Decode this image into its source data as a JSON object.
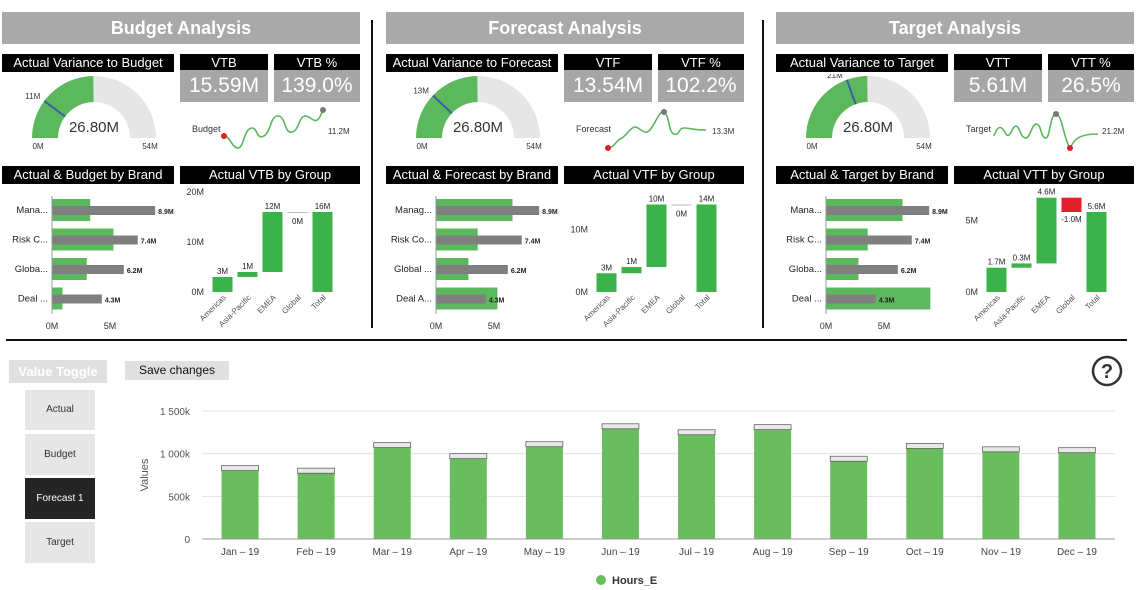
{
  "colors": {
    "green": "#5cb85c",
    "bright_green": "#3bb34a",
    "bar_gray": "#7f7f7f",
    "banner_gray": "#a9a9a9",
    "red": "#e0202a",
    "needle_blue": "#3a5ea8"
  },
  "sections": [
    {
      "id": "budget",
      "banner": "Budget Analysis",
      "gauge_title": "Actual Variance to Budget",
      "gauge": {
        "value_label": "26.80M",
        "value": 26.8,
        "min": 0,
        "max": 54,
        "min_label": "0M",
        "max_label": "54M",
        "target_label": "11M",
        "target": 11
      },
      "kpi1": {
        "label": "VTB",
        "value": "15.59M"
      },
      "kpi2": {
        "label": "VTB %",
        "value": "139.0%"
      },
      "spark": {
        "label": "Budget",
        "end_label": "11.2M"
      },
      "bar_title": "Actual & Budget by Brand",
      "bar_chart": {
        "categories": [
          "Mana...",
          "Risk C...",
          "Globa...",
          "Deal ..."
        ],
        "actual": [
          3.3,
          5.3,
          3.0,
          0.9
        ],
        "other": [
          8.9,
          7.4,
          6.2,
          4.3
        ],
        "other_labels": [
          "8.9M",
          "7.4M",
          "6.2M",
          "4.3M"
        ],
        "xmax": 10,
        "xticks": [
          "0M",
          "5M"
        ]
      },
      "wf_title": "Actual VTB by Group",
      "waterfall": {
        "categories": [
          "Americas",
          "Asia-Pacific",
          "EMEA",
          "Global",
          "Total"
        ],
        "values": [
          3,
          1,
          12,
          0,
          16
        ],
        "labels": [
          "3M",
          "1M",
          "12M",
          "0M",
          "16M"
        ],
        "ymax": 20,
        "yticks": [
          "0M",
          "10M",
          "20M"
        ]
      }
    },
    {
      "id": "forecast",
      "banner": "Forecast Analysis",
      "gauge_title": "Actual Variance to Forecast",
      "gauge": {
        "value_label": "26.80M",
        "value": 26.8,
        "min": 0,
        "max": 54,
        "min_label": "0M",
        "max_label": "54M",
        "target_label": "13M",
        "target": 13
      },
      "kpi1": {
        "label": "VTF",
        "value": "13.54M"
      },
      "kpi2": {
        "label": "VTF %",
        "value": "102.2%"
      },
      "spark": {
        "label": "Forecast",
        "end_label": "13.3M"
      },
      "bar_title": "Actual & Forecast by Brand",
      "bar_chart": {
        "categories": [
          "Manag...",
          "Risk Co...",
          "Global ...",
          "Deal A..."
        ],
        "actual": [
          6.6,
          3.6,
          2.8,
          5.3
        ],
        "other": [
          8.9,
          7.4,
          6.2,
          4.3
        ],
        "other_labels": [
          "8.9M",
          "7.4M",
          "6.2M",
          "4.3M"
        ],
        "xmax": 10,
        "xticks": [
          "0M",
          "5M"
        ]
      },
      "wf_title": "Actual VTF by Group",
      "waterfall": {
        "categories": [
          "Americas",
          "Asia-Pacific",
          "EMEA",
          "Global",
          "Total"
        ],
        "values": [
          3,
          1,
          10,
          0,
          14
        ],
        "labels": [
          "3M",
          "1M",
          "10M",
          "0M",
          "14M"
        ],
        "ymax": 16,
        "yticks": [
          "0M",
          "10M"
        ]
      }
    },
    {
      "id": "target",
      "banner": "Target Analysis",
      "gauge_title": "Actual Variance to Target",
      "gauge": {
        "value_label": "26.80M",
        "value": 26.8,
        "min": 0,
        "max": 54,
        "min_label": "0M",
        "max_label": "54M",
        "target_label": "21M",
        "target": 21
      },
      "kpi1": {
        "label": "VTT",
        "value": "5.61M"
      },
      "kpi2": {
        "label": "VTT %",
        "value": "26.5%"
      },
      "spark": {
        "label": "Target",
        "end_label": "21.2M"
      },
      "bar_title": "Actual & Target by Brand",
      "bar_chart": {
        "categories": [
          "Mana...",
          "Risk C...",
          "Globa...",
          "Deal ..."
        ],
        "actual": [
          6.6,
          3.6,
          2.8,
          9.0
        ],
        "other": [
          8.9,
          7.4,
          6.2,
          4.3
        ],
        "other_labels": [
          "8.9M",
          "7.4M",
          "6.2M",
          "4.3M"
        ],
        "xmax": 10,
        "xticks": [
          "0M",
          "5M"
        ]
      },
      "wf_title": "Actual VTT by Group",
      "waterfall": {
        "categories": [
          "Americas",
          "Asia-Pacific",
          "EMEA",
          "Global",
          "Total"
        ],
        "values": [
          1.7,
          0.3,
          4.6,
          -1.0,
          5.6
        ],
        "labels": [
          "1.7M",
          "0.3M",
          "4.6M",
          "-1.0M",
          "5.6M"
        ],
        "ymax": 7,
        "yticks": [
          "0M",
          "5M"
        ]
      }
    }
  ],
  "toggle": {
    "title": "Value Toggle",
    "save_label": "Save changes",
    "options": [
      "Actual",
      "Budget",
      "Forecast 1",
      "Target"
    ],
    "selected": "Forecast 1"
  },
  "help_icon": "question-circle-icon",
  "chart_data": {
    "type": "bar",
    "categories": [
      "Jan – 19",
      "Feb – 19",
      "Mar – 19",
      "Apr – 19",
      "May – 19",
      "Jun – 19",
      "Jul – 19",
      "Aug – 19",
      "Sep – 19",
      "Oct – 19",
      "Nov – 19",
      "Dec – 19"
    ],
    "series": [
      {
        "name": "Hours_E",
        "values": [
          860000,
          830000,
          1130000,
          1000000,
          1140000,
          1350000,
          1280000,
          1340000,
          970000,
          1120000,
          1080000,
          1070000
        ]
      }
    ],
    "ylabel": "Values",
    "ylim": [
      0,
      1500000
    ],
    "yticks": [
      "0",
      "500k",
      "1 000k",
      "1 500k"
    ],
    "legend": "bottom-center",
    "grid": true
  }
}
